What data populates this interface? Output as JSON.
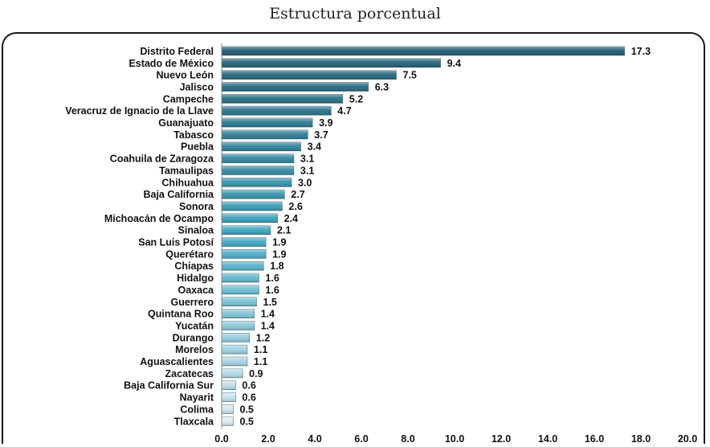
{
  "chart_data": {
    "type": "bar",
    "orientation": "horizontal",
    "title": "Estructura porcentual",
    "xlabel": "",
    "ylabel": "",
    "xlim": [
      0,
      20
    ],
    "ticks": [
      "0.0",
      "2.0",
      "4.0",
      "6.0",
      "8.0",
      "10.0",
      "12.0",
      "14.0",
      "16.0",
      "18.0",
      "20.0"
    ],
    "grid": false,
    "categories": [
      "Distrito Federal",
      "Estado de México",
      "Nuevo León",
      "Jalisco",
      "Campeche",
      "Veracruz de Ignacio de la Llave",
      "Guanajuato",
      "Tabasco",
      "Puebla",
      "Coahuila de Zaragoza",
      "Tamaulipas",
      "Chihuahua",
      "Baja California",
      "Sonora",
      "Michoacán de Ocampo",
      "Sinaloa",
      "San Luis Potosí",
      "Querétaro",
      "Chiapas",
      "Hidalgo",
      "Oaxaca",
      "Guerrero",
      "Quintana Roo",
      "Yucatán",
      "Durango",
      "Morelos",
      "Aguascalientes",
      "Zacatecas",
      "Baja California Sur",
      "Nayarit",
      "Colima",
      "Tlaxcala"
    ],
    "values": [
      17.3,
      9.4,
      7.5,
      6.3,
      5.2,
      4.7,
      3.9,
      3.7,
      3.4,
      3.1,
      3.1,
      3.0,
      2.7,
      2.6,
      2.4,
      2.1,
      1.9,
      1.9,
      1.8,
      1.6,
      1.6,
      1.5,
      1.4,
      1.4,
      1.2,
      1.1,
      1.1,
      0.9,
      0.6,
      0.6,
      0.5,
      0.5
    ],
    "value_labels": [
      "17.3",
      "9.4",
      "7.5",
      "6.3",
      "5.2",
      "4.7",
      "3.9",
      "3.7",
      "3.4",
      "3.1",
      "3.1",
      "3.0",
      "2.7",
      "2.6",
      "2.4",
      "2.1",
      "1.9",
      "1.9",
      "1.8",
      "1.6",
      "1.6",
      "1.5",
      "1.4",
      "1.4",
      "1.2",
      "1.1",
      "1.1",
      "0.9",
      "0.6",
      "0.6",
      "0.5",
      "0.5"
    ],
    "colors": {
      "dark": "#1f5b70",
      "mid": "#3fa6c2",
      "light": "#dcedf4",
      "bar_edge": "#4a6f7c"
    }
  }
}
